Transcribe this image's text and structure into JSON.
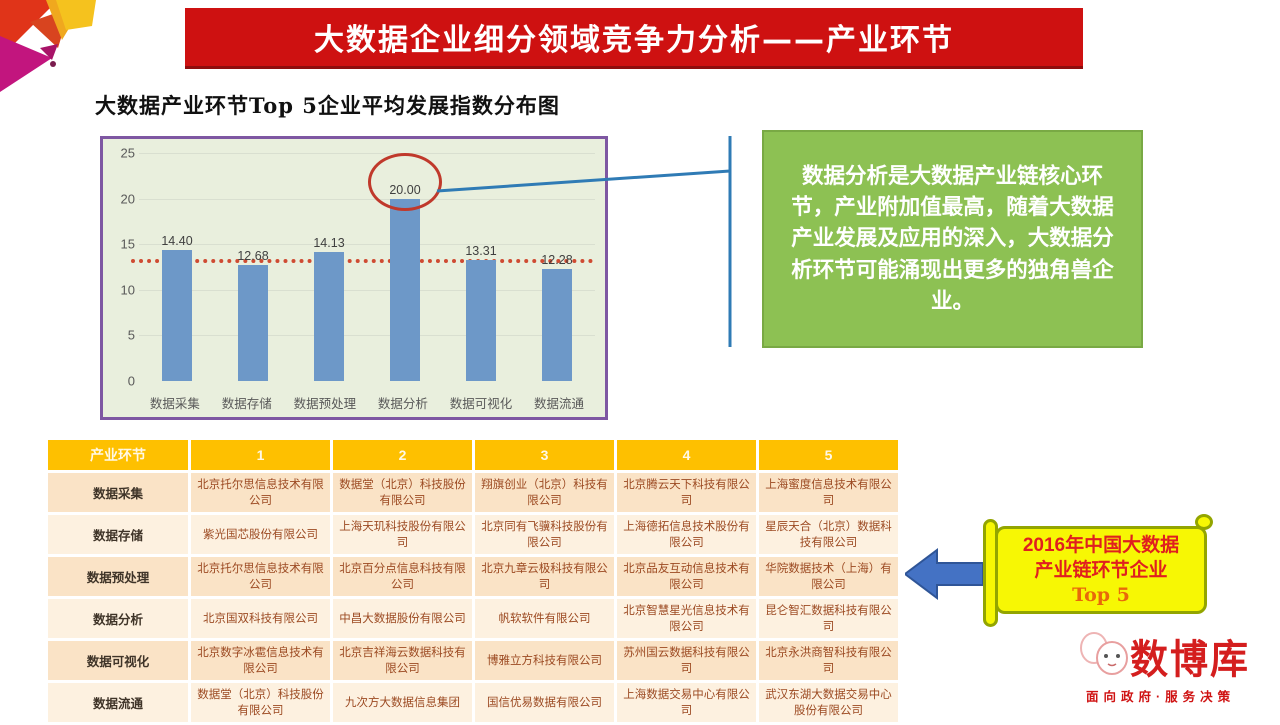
{
  "banner": {
    "title": "大数据企业细分领域竞争力分析——产业环节",
    "color": "#ce1111"
  },
  "subtitle": "大数据产业环节Top 5企业平均发展指数分布图",
  "chart_data": {
    "type": "bar",
    "title": "大数据产业环节Top 5企业平均发展指数分布图",
    "categories": [
      "数据采集",
      "数据存储",
      "数据预处理",
      "数据分析",
      "数据可视化",
      "数据流通"
    ],
    "values": [
      14.4,
      12.68,
      14.13,
      20.0,
      13.31,
      12.28
    ],
    "value_labels": [
      "14.40",
      "12.68",
      "14.13",
      "20.00",
      "13.31",
      "12.28"
    ],
    "xlabel": "",
    "ylabel": "",
    "ylim": [
      0,
      25
    ],
    "yticks": [
      0,
      5,
      10,
      15,
      20,
      25
    ],
    "grid": true,
    "legend": false,
    "reference_line": 13.4,
    "highlight_index": 3,
    "bar_color": "#6d98c8",
    "plot_background": "#e9efdd",
    "border_color": "#7e57a2",
    "reference_line_color": "#cf4b32",
    "highlight_ring_color": "#c0392b"
  },
  "callout": {
    "text": "数据分析是大数据产业链核心环节，产业附加值最高，随着大数据产业发展及应用的深入，大数据分析环节可能涌现出更多的独角兽企业。",
    "bg": "#8dc153"
  },
  "table": {
    "headers": [
      "产业环节",
      "1",
      "2",
      "3",
      "4",
      "5"
    ],
    "header_bg": "#fec000",
    "rows": [
      [
        "数据采集",
        "北京托尔思信息技术有限公司",
        "数据堂（北京）科技股份有限公司",
        "翔旗创业（北京）科技有限公司",
        "北京腾云天下科技有限公司",
        "上海蜜度信息技术有限公司"
      ],
      [
        "数据存储",
        "紫光国芯股份有限公司",
        "上海天玑科技股份有限公司",
        "北京同有飞骥科技股份有限公司",
        "上海德拓信息技术股份有限公司",
        "星辰天合（北京）数据科技有限公司"
      ],
      [
        "数据预处理",
        "北京托尔思信息技术有限公司",
        "北京百分点信息科技有限公司",
        "北京九章云极科技有限公司",
        "北京品友互动信息技术有限公司",
        "华院数据技术（上海）有限公司"
      ],
      [
        "数据分析",
        "北京国双科技有限公司",
        "中昌大数据股份有限公司",
        "帆软软件有限公司",
        "北京智慧星光信息技术有限公司",
        "昆仑智汇数据科技有限公司"
      ],
      [
        "数据可视化",
        "北京数字冰雹信息技术有限公司",
        "北京吉祥海云数据科技有限公司",
        "博雅立方科技有限公司",
        "苏州国云数据科技有限公司",
        "北京永洪商智科技有限公司"
      ],
      [
        "数据流通",
        "数据堂（北京）科技股份有限公司",
        "九次方大数据信息集团",
        "国信优易数据有限公司",
        "上海数据交易中心有限公司",
        "武汉东湖大数据交易中心股份有限公司"
      ]
    ]
  },
  "scroll_note": {
    "line1": "2016年中国大数据",
    "line2": "产业链环节企业",
    "line3": "Top 5",
    "bg": "#f7f704"
  },
  "logo": {
    "name": "数博库",
    "tagline": "面向政府·服务决策",
    "color": "#d41e1e"
  }
}
